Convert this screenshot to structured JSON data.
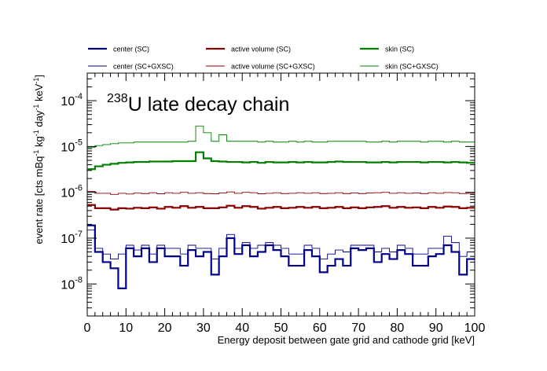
{
  "chart_data": {
    "type": "line",
    "title": "U late decay chain",
    "title_superscript": "238",
    "xlabel": "Energy deposit between gate grid and cathode grid [keV]",
    "ylabel": {
      "prefix": "event rate [cts mBq",
      "sup1": "-1",
      "seg2": " kg",
      "sup2": "-1",
      "seg3": " day",
      "sup3": "-1",
      "seg4": " keV",
      "sup4": "-1",
      "suffix": "]"
    },
    "xlim": [
      0,
      100
    ],
    "ylim": [
      2e-09,
      0.0004
    ],
    "yscale": "log",
    "grid": false,
    "legend_position": "top",
    "x_ticks": [
      0,
      10,
      20,
      30,
      40,
      50,
      60,
      70,
      80,
      90,
      100
    ],
    "y_ticks": [
      {
        "value": 1e-08,
        "base": "10",
        "exp": "-8"
      },
      {
        "value": 1e-07,
        "base": "10",
        "exp": "-7"
      },
      {
        "value": 1e-06,
        "base": "10",
        "exp": "-6"
      },
      {
        "value": 1e-05,
        "base": "10",
        "exp": "-5"
      },
      {
        "value": 0.0001,
        "base": "10",
        "exp": "-4"
      }
    ],
    "bin_edges": [
      0,
      2,
      4,
      6,
      8,
      10,
      12,
      14,
      16,
      18,
      20,
      22,
      24,
      26,
      28,
      30,
      32,
      34,
      36,
      38,
      40,
      42,
      44,
      46,
      48,
      50,
      52,
      54,
      56,
      58,
      60,
      62,
      64,
      66,
      68,
      70,
      72,
      74,
      76,
      78,
      80,
      82,
      84,
      86,
      88,
      90,
      92,
      94,
      96,
      98,
      100
    ],
    "series": [
      {
        "name": "center (SC)",
        "color": "#00008b",
        "width": 2.2,
        "values": [
          1.9e-07,
          5e-08,
          3e-08,
          2.2e-08,
          8e-09,
          6e-08,
          4e-08,
          6e-08,
          3e-08,
          6e-08,
          4e-08,
          4e-08,
          2.5e-08,
          5.5e-08,
          4e-08,
          5e-08,
          1.6e-08,
          4e-08,
          1e-07,
          4.5e-08,
          7e-08,
          4e-08,
          5e-08,
          7e-08,
          5.5e-08,
          4e-08,
          2.5e-08,
          2.5e-08,
          5.5e-08,
          4e-08,
          1.8e-08,
          2.5e-08,
          3.5e-08,
          2.5e-08,
          6e-08,
          5.5e-08,
          6e-08,
          3e-08,
          4.5e-08,
          3.5e-08,
          5.5e-08,
          4.5e-08,
          2.5e-08,
          2.5e-08,
          4e-08,
          4.5e-08,
          7e-08,
          5e-08,
          1.6e-08,
          3.5e-08
        ]
      },
      {
        "name": "active volume (SC)",
        "color": "#8b0000",
        "width": 2.2,
        "values": [
          5.3e-07,
          4.5e-07,
          4.5e-07,
          4.2e-07,
          4.5e-07,
          4.4e-07,
          4.6e-07,
          4.5e-07,
          4.7e-07,
          4.4e-07,
          4.8e-07,
          4.6e-07,
          5e-07,
          4.6e-07,
          4.8e-07,
          4.5e-07,
          4.5e-07,
          4.7e-07,
          5.1e-07,
          4.6e-07,
          5e-07,
          4.8e-07,
          4.4e-07,
          4.6e-07,
          4.8e-07,
          4.5e-07,
          4.6e-07,
          4.8e-07,
          4.6e-07,
          4.8e-07,
          4.5e-07,
          4.6e-07,
          4.8e-07,
          4.5e-07,
          4.7e-07,
          4.5e-07,
          4.7e-07,
          4.8e-07,
          5e-07,
          4.6e-07,
          4.8e-07,
          4.6e-07,
          4.7e-07,
          4.5e-07,
          4.8e-07,
          4.6e-07,
          4.9e-07,
          4.8e-07,
          4.5e-07,
          4.6e-07
        ]
      },
      {
        "name": "skin (SC)",
        "color": "#008000",
        "width": 2.2,
        "values": [
          3.2e-06,
          3.7e-06,
          4e-06,
          4.2e-06,
          4.4e-06,
          4.5e-06,
          4.6e-06,
          4.6e-06,
          4.7e-06,
          4.7e-06,
          4.7e-06,
          4.8e-06,
          4.8e-06,
          4.8e-06,
          7.5e-06,
          5.5e-06,
          4.8e-06,
          4.7e-06,
          4.6e-06,
          4.6e-06,
          4.5e-06,
          4.6e-06,
          4.4e-06,
          4.6e-06,
          4.5e-06,
          4.5e-06,
          4.6e-06,
          4.5e-06,
          4.6e-06,
          4.5e-06,
          4.5e-06,
          4.6e-06,
          4.7e-06,
          4.6e-06,
          4.6e-06,
          4.6e-06,
          4.5e-06,
          4.5e-06,
          4.6e-06,
          4.5e-06,
          4.6e-06,
          4.6e-06,
          4.6e-06,
          4.5e-06,
          4.6e-06,
          4.6e-06,
          4.5e-06,
          4.6e-06,
          4.5e-06,
          4.4e-06
        ]
      },
      {
        "name": "center (SC+GXSC)",
        "color": "#00008b",
        "width": 0.9,
        "values": [
          1.5e-07,
          6e-08,
          4.5e-08,
          3.5e-08,
          4.5e-08,
          7e-08,
          5.5e-08,
          7e-08,
          4.5e-08,
          7e-08,
          6e-08,
          6e-08,
          4.5e-08,
          7e-08,
          6e-08,
          6e-08,
          3.5e-08,
          6e-08,
          1.2e-07,
          6e-08,
          8e-08,
          6e-08,
          7e-08,
          8e-08,
          7e-08,
          6e-08,
          4.5e-08,
          4.5e-08,
          7e-08,
          6e-08,
          3.5e-08,
          4.5e-08,
          5.5e-08,
          5e-08,
          7e-08,
          7e-08,
          7e-08,
          5e-08,
          6e-08,
          5e-08,
          7e-08,
          6e-08,
          4.5e-08,
          4.5e-08,
          6e-08,
          6e-08,
          1.1e-07,
          8e-08,
          4e-08,
          5e-08
        ]
      },
      {
        "name": "active volume (SC+GXSC)",
        "color": "#8b0000",
        "width": 0.9,
        "values": [
          1.05e-06,
          9.5e-07,
          9.5e-07,
          9e-07,
          9.5e-07,
          9.2e-07,
          9.6e-07,
          9.4e-07,
          9.8e-07,
          9.3e-07,
          9.8e-07,
          9.5e-07,
          1e-06,
          9.5e-07,
          9.8e-07,
          9.4e-07,
          9.3e-07,
          9.7e-07,
          1.02e-06,
          9.5e-07,
          1e-06,
          9.8e-07,
          9.3e-07,
          9.5e-07,
          9.8e-07,
          9.4e-07,
          9.5e-07,
          9.8e-07,
          9.5e-07,
          9.8e-07,
          9.4e-07,
          9.5e-07,
          9.8e-07,
          9.4e-07,
          9.7e-07,
          9.4e-07,
          9.7e-07,
          9.8e-07,
          1e-06,
          9.5e-07,
          9.8e-07,
          9.5e-07,
          9.7e-07,
          9.4e-07,
          9.8e-07,
          9.5e-07,
          9.9e-07,
          9.8e-07,
          9.4e-07,
          9.5e-07
        ]
      },
      {
        "name": "skin (SC+GXSC)",
        "color": "#008000",
        "width": 0.9,
        "values": [
          9.5e-06,
          1.05e-05,
          1.1e-05,
          1.15e-05,
          1.2e-05,
          1.2e-05,
          1.25e-05,
          1.25e-05,
          1.25e-05,
          1.25e-05,
          1.25e-05,
          1.25e-05,
          1.25e-05,
          1.3e-05,
          2.8e-05,
          2e-05,
          1.3e-05,
          1.8e-05,
          1.3e-05,
          1.3e-05,
          1.3e-05,
          1.3e-05,
          1.25e-05,
          1.3e-05,
          1.25e-05,
          1.25e-05,
          1.3e-05,
          1.25e-05,
          1.3e-05,
          1.25e-05,
          1.25e-05,
          1.3e-05,
          1.3e-05,
          1.3e-05,
          1.3e-05,
          1.3e-05,
          1.25e-05,
          1.25e-05,
          1.3e-05,
          1.25e-05,
          1.3e-05,
          1.3e-05,
          1.3e-05,
          1.25e-05,
          1.3e-05,
          1.3e-05,
          1.25e-05,
          1.3e-05,
          1.25e-05,
          1.25e-05
        ]
      }
    ]
  }
}
